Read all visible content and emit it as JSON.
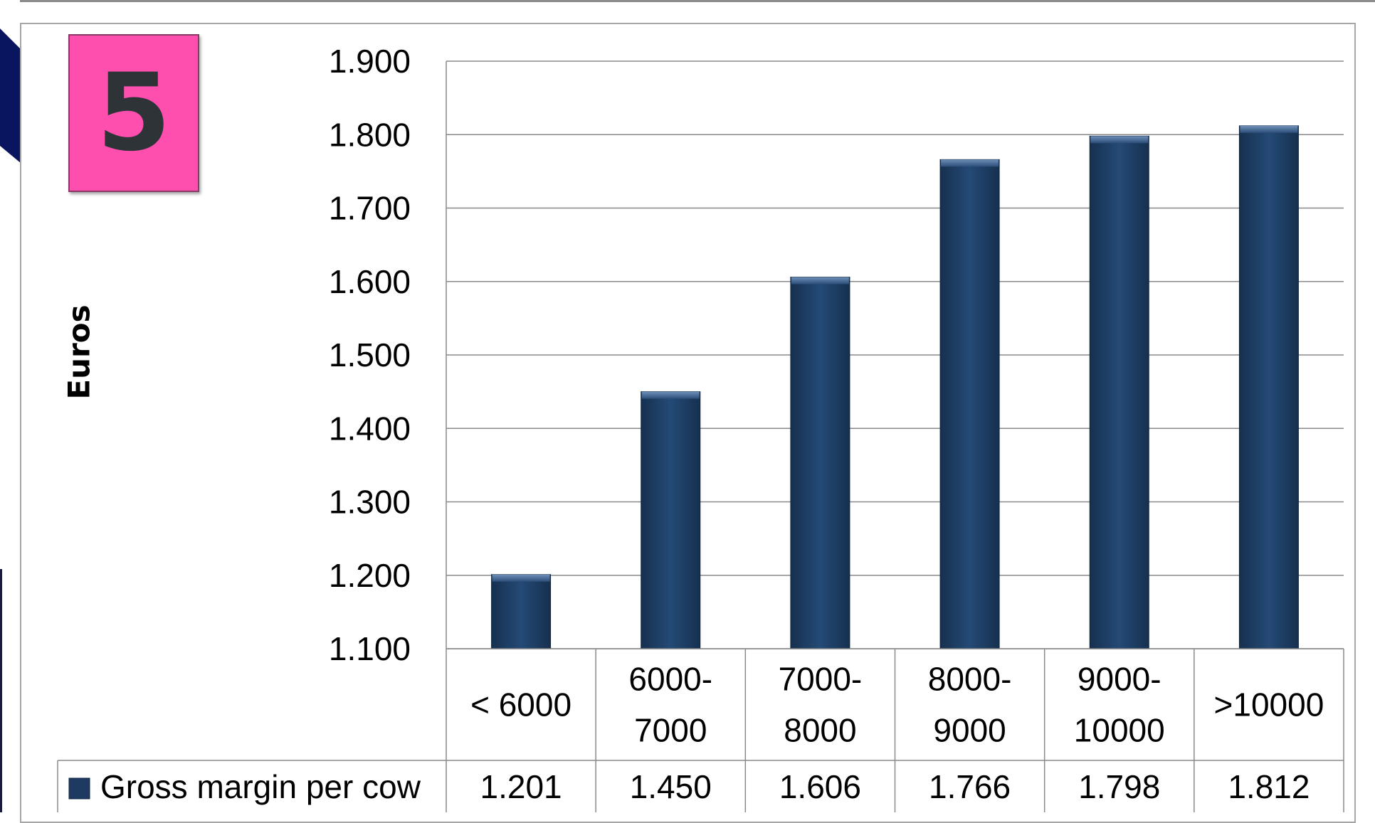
{
  "badge": {
    "number": "5",
    "color": "#ff4fae"
  },
  "chart_data": {
    "type": "bar",
    "title": "",
    "xlabel": "",
    "ylabel": "Euros",
    "categories": [
      "< 6000",
      "6000-\n7000",
      "7000-\n8000",
      "8000-\n9000",
      "9000-\n10000",
      ">10000"
    ],
    "series": [
      {
        "name": "Gross margin per cow",
        "values": [
          1201,
          1450,
          1606,
          1766,
          1798,
          1812
        ],
        "value_labels": [
          "1.201",
          "1.450",
          "1.606",
          "1.766",
          "1.798",
          "1.812"
        ],
        "color": "#1f3a60"
      }
    ],
    "ylim": [
      1100,
      1900
    ],
    "yticks": [
      1100,
      1200,
      1300,
      1400,
      1500,
      1600,
      1700,
      1800,
      1900
    ],
    "ytick_labels": [
      "1.100",
      "1.200",
      "1.300",
      "1.400",
      "1.500",
      "1.600",
      "1.700",
      "1.800",
      "1.900"
    ],
    "grid": true,
    "data_table": true,
    "legend": "in-data-table"
  }
}
